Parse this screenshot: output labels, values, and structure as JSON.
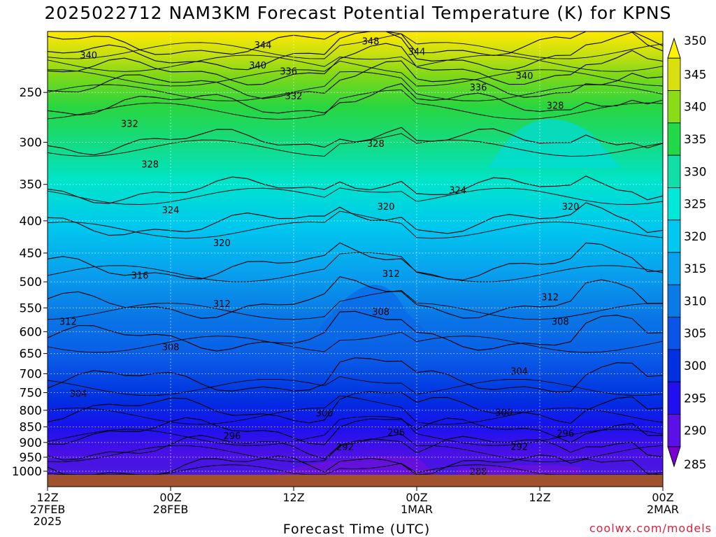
{
  "page": {
    "title": "2025022712 NAM3KM Forecast Potential Temperature (K) for KPNS",
    "xlabel": "Forecast Time (UTC)",
    "credit": "coolwx.com/models"
  },
  "chart_data": {
    "type": "heatmap",
    "title": "2025022712 NAM3KM Forecast Potential Temperature (K) for KPNS",
    "xlabel": "Forecast Time (UTC)",
    "ylabel": "",
    "x_ticks": [
      {
        "hour": 0,
        "lines": [
          "12Z",
          "27FEB",
          "2025"
        ]
      },
      {
        "hour": 12,
        "lines": [
          "00Z",
          "28FEB"
        ]
      },
      {
        "hour": 24,
        "lines": [
          "12Z"
        ]
      },
      {
        "hour": 36,
        "lines": [
          "00Z",
          "1MAR"
        ]
      },
      {
        "hour": 48,
        "lines": [
          "12Z"
        ]
      },
      {
        "hour": 60,
        "lines": [
          "00Z",
          "2MAR"
        ]
      }
    ],
    "x_range_hours": [
      0,
      60
    ],
    "y_pressure_ticks": [
      250,
      300,
      350,
      400,
      450,
      500,
      550,
      600,
      650,
      700,
      750,
      800,
      850,
      900,
      950,
      1000
    ],
    "y_range": [
      200,
      1013
    ],
    "y_scale": "log-pressure (inverted)",
    "grid": true,
    "colorbar": {
      "levels": [
        285,
        290,
        295,
        300,
        305,
        310,
        315,
        320,
        325,
        330,
        335,
        340,
        345,
        350
      ],
      "colors": [
        "#7a00d0",
        "#5a10e6",
        "#2010f0",
        "#0030e0",
        "#0a55e8",
        "#0a7ae8",
        "#08a2f0",
        "#00c8f0",
        "#00e8d8",
        "#10e0a8",
        "#20d848",
        "#8adc18",
        "#d8e010",
        "#fff200"
      ],
      "position": "right"
    },
    "contour_labels": [
      {
        "text": "348",
        "hour": 31.5,
        "p": 207
      },
      {
        "text": "344",
        "hour": 21,
        "p": 210
      },
      {
        "text": "344",
        "hour": 36,
        "p": 215
      },
      {
        "text": "340",
        "hour": 4,
        "p": 218
      },
      {
        "text": "340",
        "hour": 20.5,
        "p": 226
      },
      {
        "text": "340",
        "hour": 46.5,
        "p": 235
      },
      {
        "text": "336",
        "hour": 23.5,
        "p": 231
      },
      {
        "text": "336",
        "hour": 42,
        "p": 245
      },
      {
        "text": "332",
        "hour": 24,
        "p": 253
      },
      {
        "text": "332",
        "hour": 8,
        "p": 280
      },
      {
        "text": "328",
        "hour": 49.5,
        "p": 262
      },
      {
        "text": "328",
        "hour": 32,
        "p": 301
      },
      {
        "text": "328",
        "hour": 10,
        "p": 325
      },
      {
        "text": "324",
        "hour": 40,
        "p": 357
      },
      {
        "text": "324",
        "hour": 12,
        "p": 384
      },
      {
        "text": "320",
        "hour": 33,
        "p": 379
      },
      {
        "text": "320",
        "hour": 51,
        "p": 379
      },
      {
        "text": "320",
        "hour": 17,
        "p": 433
      },
      {
        "text": "316",
        "hour": 9,
        "p": 488
      },
      {
        "text": "312",
        "hour": 33.5,
        "p": 485
      },
      {
        "text": "312",
        "hour": 49,
        "p": 528
      },
      {
        "text": "312",
        "hour": 17,
        "p": 541
      },
      {
        "text": "312",
        "hour": 2,
        "p": 578
      },
      {
        "text": "308",
        "hour": 32.5,
        "p": 557
      },
      {
        "text": "308",
        "hour": 50,
        "p": 578
      },
      {
        "text": "308",
        "hour": 12,
        "p": 634
      },
      {
        "text": "304",
        "hour": 46,
        "p": 693
      },
      {
        "text": "304",
        "hour": 3,
        "p": 752
      },
      {
        "text": "300",
        "hour": 27,
        "p": 808
      },
      {
        "text": "300",
        "hour": 44.5,
        "p": 806
      },
      {
        "text": "296",
        "hour": 18,
        "p": 878
      },
      {
        "text": "296",
        "hour": 34,
        "p": 867
      },
      {
        "text": "296",
        "hour": 50.5,
        "p": 870
      },
      {
        "text": "292",
        "hour": 29,
        "p": 915
      },
      {
        "text": "292",
        "hour": 46,
        "p": 913
      },
      {
        "text": "288",
        "hour": 42,
        "p": 1000
      }
    ]
  }
}
